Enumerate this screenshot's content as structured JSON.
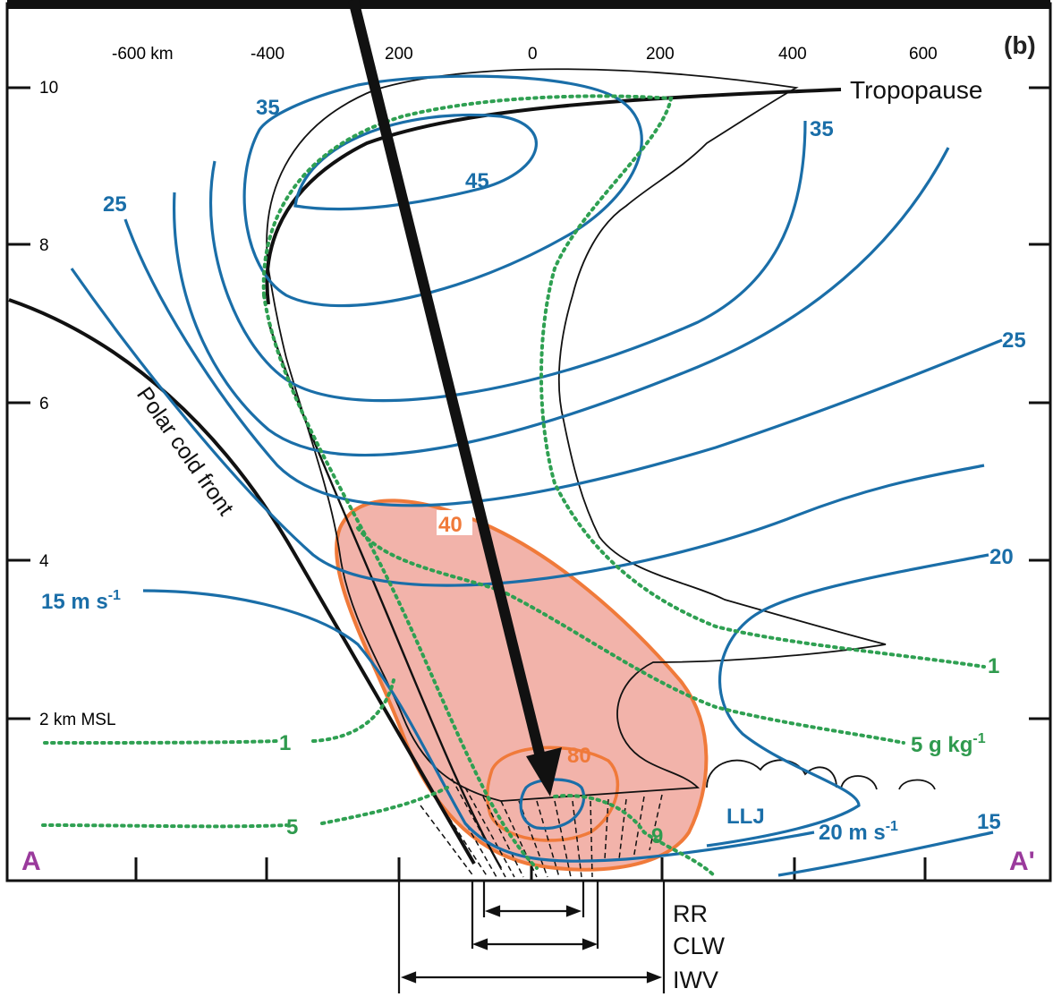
{
  "panel_label": "(b)",
  "x_ticks": [
    "-600 km",
    "-400",
    "200",
    "0",
    "200",
    "400",
    "600"
  ],
  "y_ticks": [
    "10",
    "8",
    "6",
    "4",
    "2 km MSL"
  ],
  "labels": {
    "tropopause": "Tropopause",
    "polar_cold_front": "Polar cold front",
    "llj": "LLJ",
    "endpoint_left": "A",
    "endpoint_right": "A'"
  },
  "wind_speed_labels": {
    "w15_left": "15 m s",
    "w15_left_exp": "-1",
    "w25_left": "25",
    "w35_left": "35",
    "w45": "45",
    "w35_right": "35",
    "w25_right": "25",
    "w20_right": "20",
    "w20_lower": "20 m s",
    "w20_lower_exp": "-1",
    "w15_right": "15"
  },
  "moisture_labels": {
    "q1_left": "1",
    "q5_left": "5",
    "q1_right": "1",
    "q5_right": "5 g kg",
    "q5_right_exp": "-1",
    "q9": "9"
  },
  "orange_labels": {
    "o40": "40",
    "o80": "80"
  },
  "bottom_labels": {
    "rr": "RR",
    "clw": "CLW",
    "iwv": "IWV"
  },
  "colors": {
    "wind": "#1a6ea8",
    "moisture": "#2fa052",
    "shading": "#f2b3aa",
    "shading_edge": "#f07a3a",
    "endpoint": "#9a3a9c"
  }
}
